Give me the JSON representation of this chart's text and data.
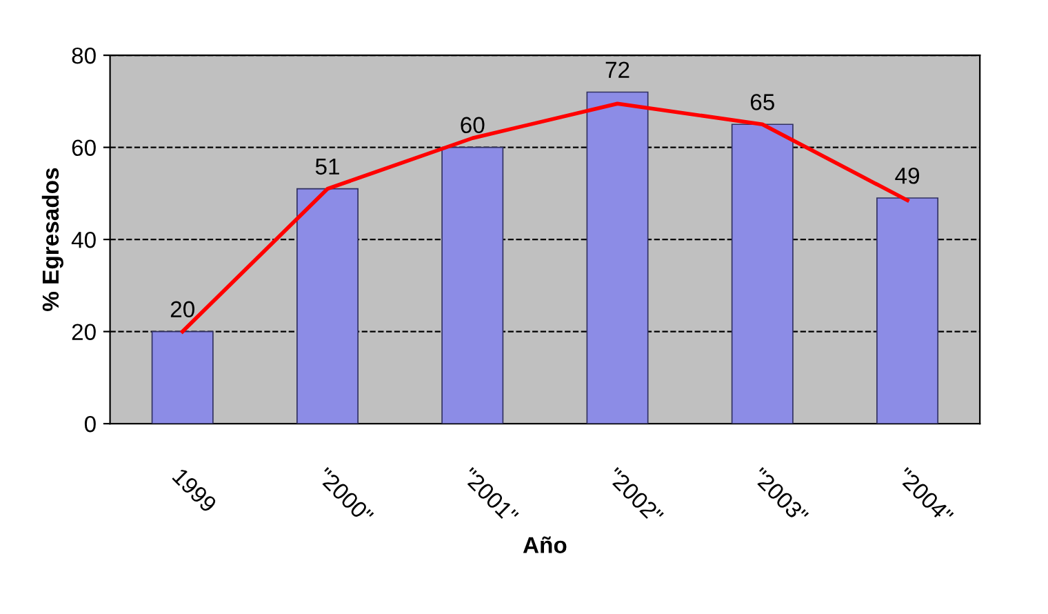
{
  "chart_data": {
    "type": "bar",
    "xlabel": "Año",
    "ylabel": "% Egresados",
    "categories": [
      "1999",
      "\"2000\"",
      "\"2001\"",
      "\"2002\"",
      "\"2003\"",
      "\"2004\""
    ],
    "series": [
      {
        "color": "#8c8ce6",
        "values": [
          20,
          51,
          60,
          72,
          65,
          49
        ],
        "value_labels": [
          "20",
          "51",
          "60",
          "72",
          "65",
          "49"
        ]
      },
      {
        "type": "line",
        "color": "#ff0000",
        "values": [
          20,
          51,
          62,
          69.5,
          65,
          48.5
        ]
      }
    ],
    "ylim": [
      0,
      80
    ],
    "yticks": [
      0,
      20,
      40,
      60,
      80
    ],
    "grid": "y"
  }
}
